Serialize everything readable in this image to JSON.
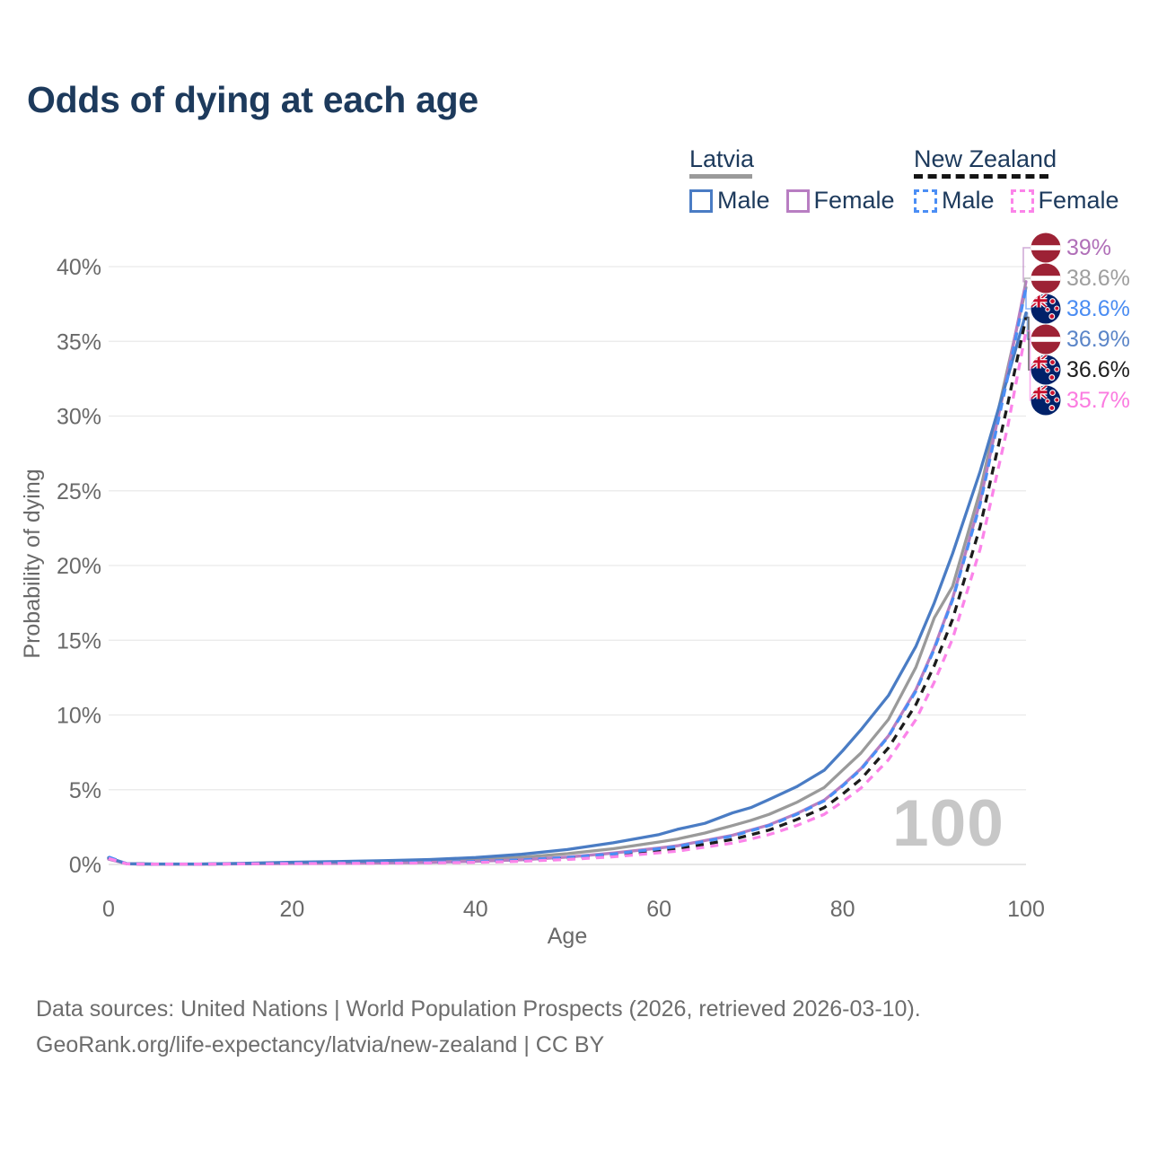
{
  "page": {
    "title": "Odds of dying at each age",
    "watermark": "100",
    "source_line1": "Data sources: United Nations | World Population Prospects (2026, retrieved 2026-03-10).",
    "source_line2": "GeoRank.org/life-expectancy/latvia/new-zealand | CC BY"
  },
  "legend": {
    "groups": [
      {
        "name": "Latvia",
        "underline_style": "solid",
        "underline_color": "#9a9a9a",
        "items": [
          {
            "label": "Male",
            "color": "#4a7cc4",
            "dashed": false
          },
          {
            "label": "Female",
            "color": "#b87ec2",
            "dashed": false
          }
        ]
      },
      {
        "name": "New Zealand",
        "underline_style": "dashed",
        "underline_color": "#141414",
        "items": [
          {
            "label": "Male",
            "color": "#4b8ef5",
            "dashed": true
          },
          {
            "label": "Female",
            "color": "#fb84e9",
            "dashed": true
          }
        ]
      }
    ]
  },
  "chart_data": {
    "type": "line",
    "title": "Odds of dying at each age",
    "xlabel": "Age",
    "ylabel": "Probability of dying",
    "xlim": [
      0,
      100
    ],
    "ylim_pct": [
      0,
      40
    ],
    "x_ticks": [
      0,
      20,
      40,
      60,
      80,
      100
    ],
    "y_ticks_pct": [
      0,
      5,
      10,
      15,
      20,
      25,
      30,
      35,
      40
    ],
    "grid": "horizontal",
    "grid_color": "#e9e9e9",
    "zero_line_color": "#d8d8d8",
    "axis_text_color": "#696969",
    "watermark_color": "#c7c7c7",
    "legend_position": "top-right",
    "ages": [
      0,
      2,
      5,
      10,
      15,
      20,
      25,
      30,
      35,
      40,
      45,
      50,
      55,
      60,
      62,
      65,
      68,
      70,
      72,
      75,
      78,
      80,
      82,
      85,
      88,
      90,
      92,
      95,
      98,
      100
    ],
    "series": [
      {
        "key": "latvia_both",
        "name": "Latvia",
        "country": "Latvia",
        "sex": "Both",
        "color": "#9a9a9a",
        "dashed": false,
        "values_pct": [
          0.4,
          0.045,
          0.025,
          0.025,
          0.06,
          0.1,
          0.13,
          0.17,
          0.23,
          0.33,
          0.48,
          0.72,
          1.05,
          1.5,
          1.7,
          2.1,
          2.6,
          2.95,
          3.35,
          4.15,
          5.15,
          6.3,
          7.45,
          9.7,
          13.2,
          16.5,
          18.6,
          25.0,
          33.2,
          38.6
        ],
        "end_value_pct": 38.6
      },
      {
        "key": "latvia_female",
        "name": "Latvia Female",
        "country": "Latvia",
        "sex": "Female",
        "color": "#b87ec2",
        "dashed": false,
        "values_pct": [
          0.35,
          0.04,
          0.02,
          0.02,
          0.04,
          0.06,
          0.07,
          0.1,
          0.14,
          0.21,
          0.31,
          0.49,
          0.76,
          1.1,
          1.25,
          1.6,
          1.95,
          2.3,
          2.65,
          3.4,
          4.3,
          5.3,
          6.4,
          8.6,
          11.7,
          14.5,
          17.8,
          24.3,
          32.9,
          39.0
        ],
        "end_value_pct": 39.0
      },
      {
        "key": "latvia_male",
        "name": "Latvia Male",
        "country": "Latvia",
        "sex": "Male",
        "color": "#4a7cc4",
        "dashed": false,
        "values_pct": [
          0.45,
          0.05,
          0.03,
          0.03,
          0.08,
          0.15,
          0.19,
          0.25,
          0.33,
          0.46,
          0.68,
          1.0,
          1.45,
          2.0,
          2.35,
          2.75,
          3.45,
          3.8,
          4.35,
          5.2,
          6.3,
          7.6,
          9.0,
          11.3,
          14.6,
          17.5,
          20.8,
          26.3,
          32.6,
          36.9
        ],
        "end_value_pct": 36.9
      },
      {
        "key": "nz_both",
        "name": "New Zealand",
        "country": "New Zealand",
        "sex": "Both",
        "color": "#1c1c1c",
        "dashed": true,
        "values_pct": [
          0.45,
          0.04,
          0.02,
          0.02,
          0.05,
          0.075,
          0.085,
          0.1,
          0.13,
          0.17,
          0.26,
          0.4,
          0.61,
          0.92,
          1.05,
          1.36,
          1.67,
          1.98,
          2.3,
          3.0,
          3.8,
          4.7,
          5.7,
          7.8,
          10.7,
          13.3,
          16.4,
          22.6,
          30.8,
          36.6
        ],
        "end_value_pct": 36.6
      },
      {
        "key": "nz_male",
        "name": "New Zealand Male",
        "country": "New Zealand",
        "sex": "Male",
        "color": "#4b8ef5",
        "dashed": true,
        "values_pct": [
          0.5,
          0.045,
          0.022,
          0.022,
          0.055,
          0.09,
          0.1,
          0.12,
          0.15,
          0.2,
          0.3,
          0.46,
          0.7,
          1.05,
          1.2,
          1.55,
          1.9,
          2.25,
          2.6,
          3.35,
          4.25,
          5.25,
          6.35,
          8.55,
          11.6,
          14.4,
          17.7,
          24.1,
          32.6,
          38.6
        ],
        "end_value_pct": 38.6
      },
      {
        "key": "nz_female",
        "name": "New Zealand Female",
        "country": "New Zealand",
        "sex": "Female",
        "color": "#fb84e9",
        "dashed": true,
        "values_pct": [
          0.4,
          0.035,
          0.018,
          0.018,
          0.04,
          0.055,
          0.065,
          0.08,
          0.1,
          0.14,
          0.21,
          0.33,
          0.51,
          0.78,
          0.89,
          1.16,
          1.43,
          1.7,
          2.0,
          2.6,
          3.35,
          4.2,
          5.1,
          7.0,
          9.7,
          12.2,
          15.1,
          21.1,
          29.3,
          35.7
        ],
        "end_value_pct": 35.7
      }
    ],
    "end_labels": [
      {
        "series": "latvia_female",
        "text": "39%",
        "flag": "latvia",
        "color": "#b06fb8"
      },
      {
        "series": "latvia_both",
        "text": "38.6%",
        "flag": "latvia",
        "color": "#9e9e9e"
      },
      {
        "series": "nz_male",
        "text": "38.6%",
        "flag": "new-zealand",
        "color": "#4a8cf2"
      },
      {
        "series": "latvia_male",
        "text": "36.9%",
        "flag": "latvia",
        "color": "#5b85c8"
      },
      {
        "series": "nz_both",
        "text": "36.6%",
        "flag": "new-zealand",
        "color": "#1f1f1f"
      },
      {
        "series": "nz_female",
        "text": "35.7%",
        "flag": "new-zealand",
        "color": "#fb7be0"
      }
    ],
    "flag_colors": {
      "latvia_red": "#9d2235",
      "nz_blue": "#012169",
      "star_red": "#c8102e"
    }
  }
}
